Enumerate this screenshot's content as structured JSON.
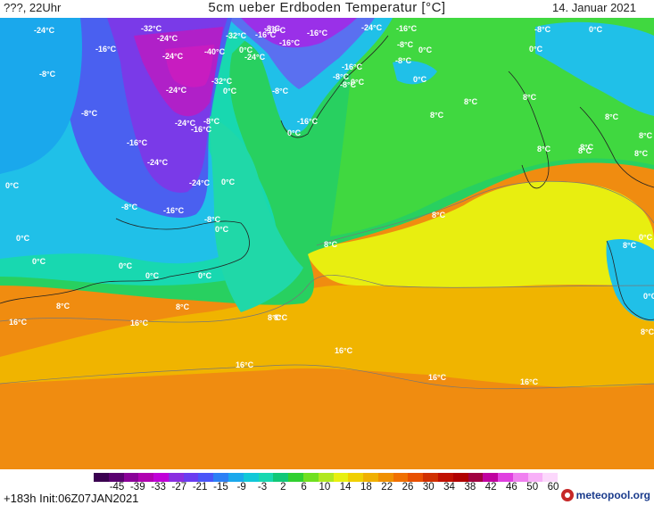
{
  "header": {
    "run_label": "???, 22Uhr",
    "title": "5cm ueber Erdboden Temperatur [°C]",
    "date": "14. Januar 2021"
  },
  "footer": {
    "init": "+183h  Init:06Z07JAN2021",
    "logo": "meteopool.org"
  },
  "legend": {
    "tick_labels": [
      "-45",
      "-39",
      "-33",
      "-27",
      "-21",
      "-15",
      "-9",
      "-3",
      "2",
      "6",
      "10",
      "14",
      "18",
      "22",
      "26",
      "30",
      "34",
      "38",
      "42",
      "46",
      "50",
      "60"
    ],
    "colors": [
      "#3a0050",
      "#5a0070",
      "#8a0098",
      "#b000b0",
      "#c000d8",
      "#8a2ee0",
      "#6a3cf0",
      "#4a55f8",
      "#2c80f5",
      "#1aa8ec",
      "#10c8d8",
      "#18d8b0",
      "#10c878",
      "#30d030",
      "#70e020",
      "#b0e820",
      "#e8f010",
      "#f0d000",
      "#f0b000",
      "#f09000",
      "#f07000",
      "#e85000",
      "#d03000",
      "#c01000",
      "#b00000",
      "#a00040",
      "#c000a0",
      "#e040e0",
      "#f080f0",
      "#f8b0f8",
      "#fcd8fc"
    ]
  },
  "map": {
    "colors": {
      "cold_purple": "#9a30e8",
      "cold_blue": "#5a70f0",
      "cool_cyan": "#20c0e8",
      "cool_teal": "#20d8b8",
      "mild_green": "#28d068",
      "mild_green2": "#40d840",
      "warm_yellow": "#e8f010",
      "warm_gold": "#f0c800",
      "warm_orange": "#f0a010",
      "hot_orange": "#f08c10"
    },
    "labels": [
      "-24°C",
      "-32°C",
      "-8°C",
      "-24°C",
      "-16°C",
      "-16°C",
      "-8°C",
      "0°C",
      "-16°C",
      "-32°C",
      "-16°C",
      "-16°C",
      "-24°C",
      "-16°C",
      "-8°C",
      "-40°C",
      "-24°C",
      "-8°C",
      "0°C",
      "0°C",
      "0°C",
      "-8°C",
      "0°C",
      "-8°C",
      "-32°C",
      "-24°C",
      "0°C",
      "-8°C",
      "0°C",
      "-16°C",
      "-8°C",
      "8°C",
      "8°C",
      "-8°C",
      "-24°C",
      "-24°C",
      "-16°C",
      "-16°C",
      "-8°C",
      "8°C",
      "8°C",
      "8°C",
      "8°C",
      "-16°C",
      "0°C",
      "-24°C",
      "-24°C",
      "0°C",
      "8°C",
      "8°C",
      "8°C",
      "0°C",
      "-8°C",
      "-16°C",
      "-8°C",
      "0°C",
      "8°C",
      "8°C",
      "0°C",
      "0°C",
      "0°C",
      "0°C",
      "0°C",
      "8°C",
      "0°C",
      "0°C",
      "8°C",
      "8°C",
      "8°C",
      "16°C",
      "16°C",
      "8°C",
      "16°C",
      "16°C",
      "16°C",
      "16°C",
      "8°C"
    ]
  }
}
